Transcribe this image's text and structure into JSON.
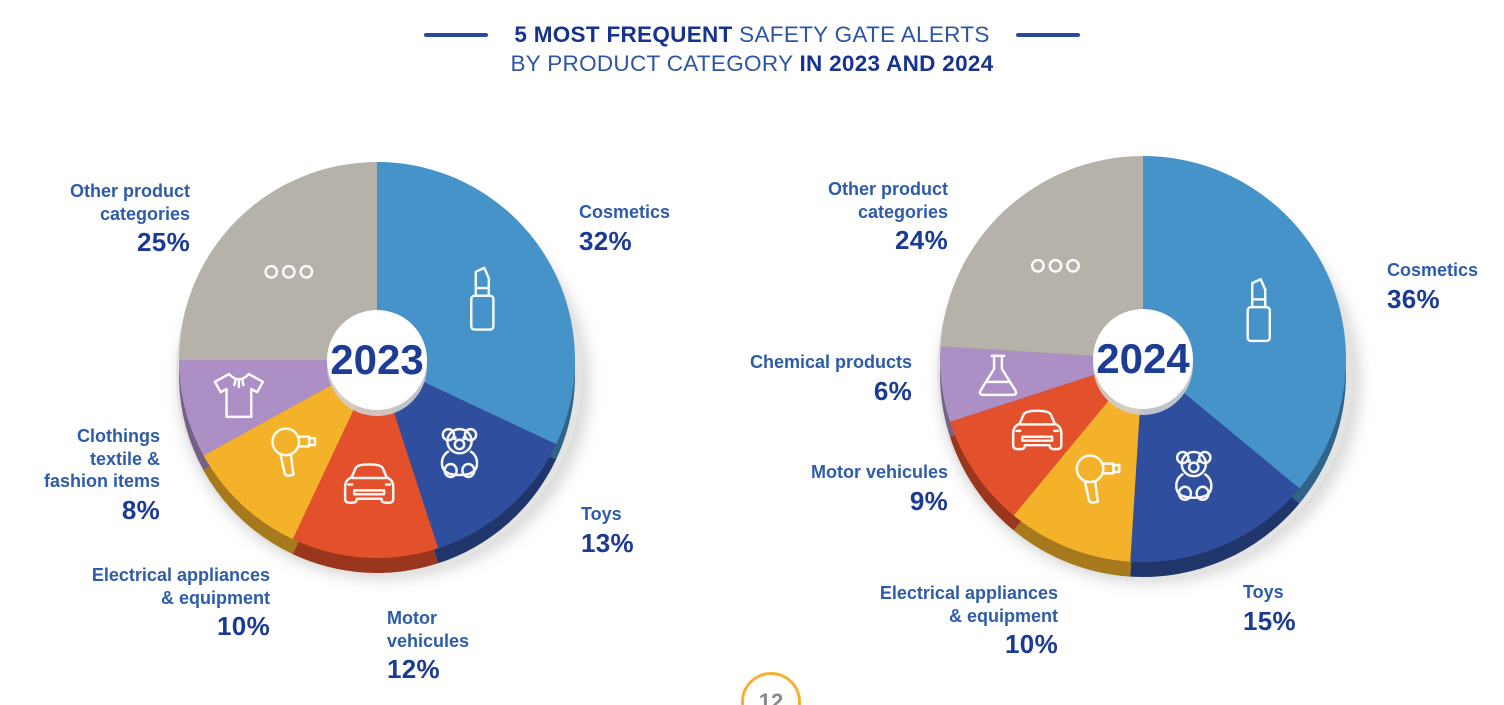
{
  "title": {
    "line1_bold": "5 MOST FREQUENT",
    "line1_regular": "SAFETY GATE ALERTS",
    "line2_regular": "BY PRODUCT CATEGORY",
    "line2_bold": "IN 2023 AND 2024"
  },
  "page_badge": {
    "number": "12",
    "ring_color": "#F2B233"
  },
  "colors": {
    "title_navy_bold": "#16338F",
    "title_blue_regular": "#2D55A5",
    "label_name_blue": "#2E5CA9",
    "label_pct_navy": "#1B3A94",
    "cosmetics_blue": "#4593C8",
    "toys_dark_blue": "#2F4F9E",
    "motor_red": "#E2502C",
    "electrical_yellow": "#F3B229",
    "clothing_chemical_purple": "#AC8FC4",
    "other_gray": "#B7B2A9"
  },
  "chart_data": [
    {
      "type": "pie",
      "year": "2023",
      "direction": "clockwise",
      "start_angle_deg": 0,
      "slices": [
        {
          "label": "Cosmetics",
          "value_pct": 32,
          "pct_label": "32%",
          "color": "#4593C8",
          "icon": "lipstick",
          "label_lines": [
            "Cosmetics"
          ]
        },
        {
          "label": "Toys",
          "value_pct": 13,
          "pct_label": "13%",
          "color": "#2F4F9E",
          "icon": "teddy-bear",
          "label_lines": [
            "Toys"
          ]
        },
        {
          "label": "Motor vehicules",
          "value_pct": 12,
          "pct_label": "12%",
          "color": "#E2502C",
          "icon": "car",
          "label_lines": [
            "Motor",
            "vehicules"
          ]
        },
        {
          "label": "Electrical appliances & equipment",
          "value_pct": 10,
          "pct_label": "10%",
          "color": "#F3B229",
          "icon": "hair-dryer",
          "label_lines": [
            "Electrical appliances",
            "& equipment"
          ]
        },
        {
          "label": "Clothings textile & fashion items",
          "value_pct": 8,
          "pct_label": "8%",
          "color": "#AC8FC4",
          "icon": "t-shirt",
          "label_lines": [
            "Clothings",
            "textile &",
            "fashion items"
          ]
        },
        {
          "label": "Other product categories",
          "value_pct": 25,
          "pct_label": "25%",
          "color": "#B7B2A9",
          "icon": "ellipsis",
          "label_lines": [
            "Other product",
            "categories"
          ]
        }
      ]
    },
    {
      "type": "pie",
      "year": "2024",
      "direction": "clockwise",
      "start_angle_deg": 0,
      "slices": [
        {
          "label": "Cosmetics",
          "value_pct": 36,
          "pct_label": "36%",
          "color": "#4593C8",
          "icon": "lipstick",
          "label_lines": [
            "Cosmetics"
          ]
        },
        {
          "label": "Toys",
          "value_pct": 15,
          "pct_label": "15%",
          "color": "#2F4F9E",
          "icon": "teddy-bear",
          "label_lines": [
            "Toys"
          ]
        },
        {
          "label": "Electrical appliances & equipment",
          "value_pct": 10,
          "pct_label": "10%",
          "color": "#F3B229",
          "icon": "hair-dryer",
          "label_lines": [
            "Electrical appliances",
            "& equipment"
          ]
        },
        {
          "label": "Motor vehicules",
          "value_pct": 9,
          "pct_label": "9%",
          "color": "#E2502C",
          "icon": "car",
          "label_lines": [
            "Motor vehicules"
          ]
        },
        {
          "label": "Chemical products",
          "value_pct": 6,
          "pct_label": "6%",
          "color": "#AC8FC4",
          "icon": "flask",
          "label_lines": [
            "Chemical products"
          ]
        },
        {
          "label": "Other product categories",
          "value_pct": 24,
          "pct_label": "24%",
          "color": "#B7B2A9",
          "icon": "ellipsis",
          "label_lines": [
            "Other product",
            "categories"
          ]
        }
      ]
    }
  ]
}
